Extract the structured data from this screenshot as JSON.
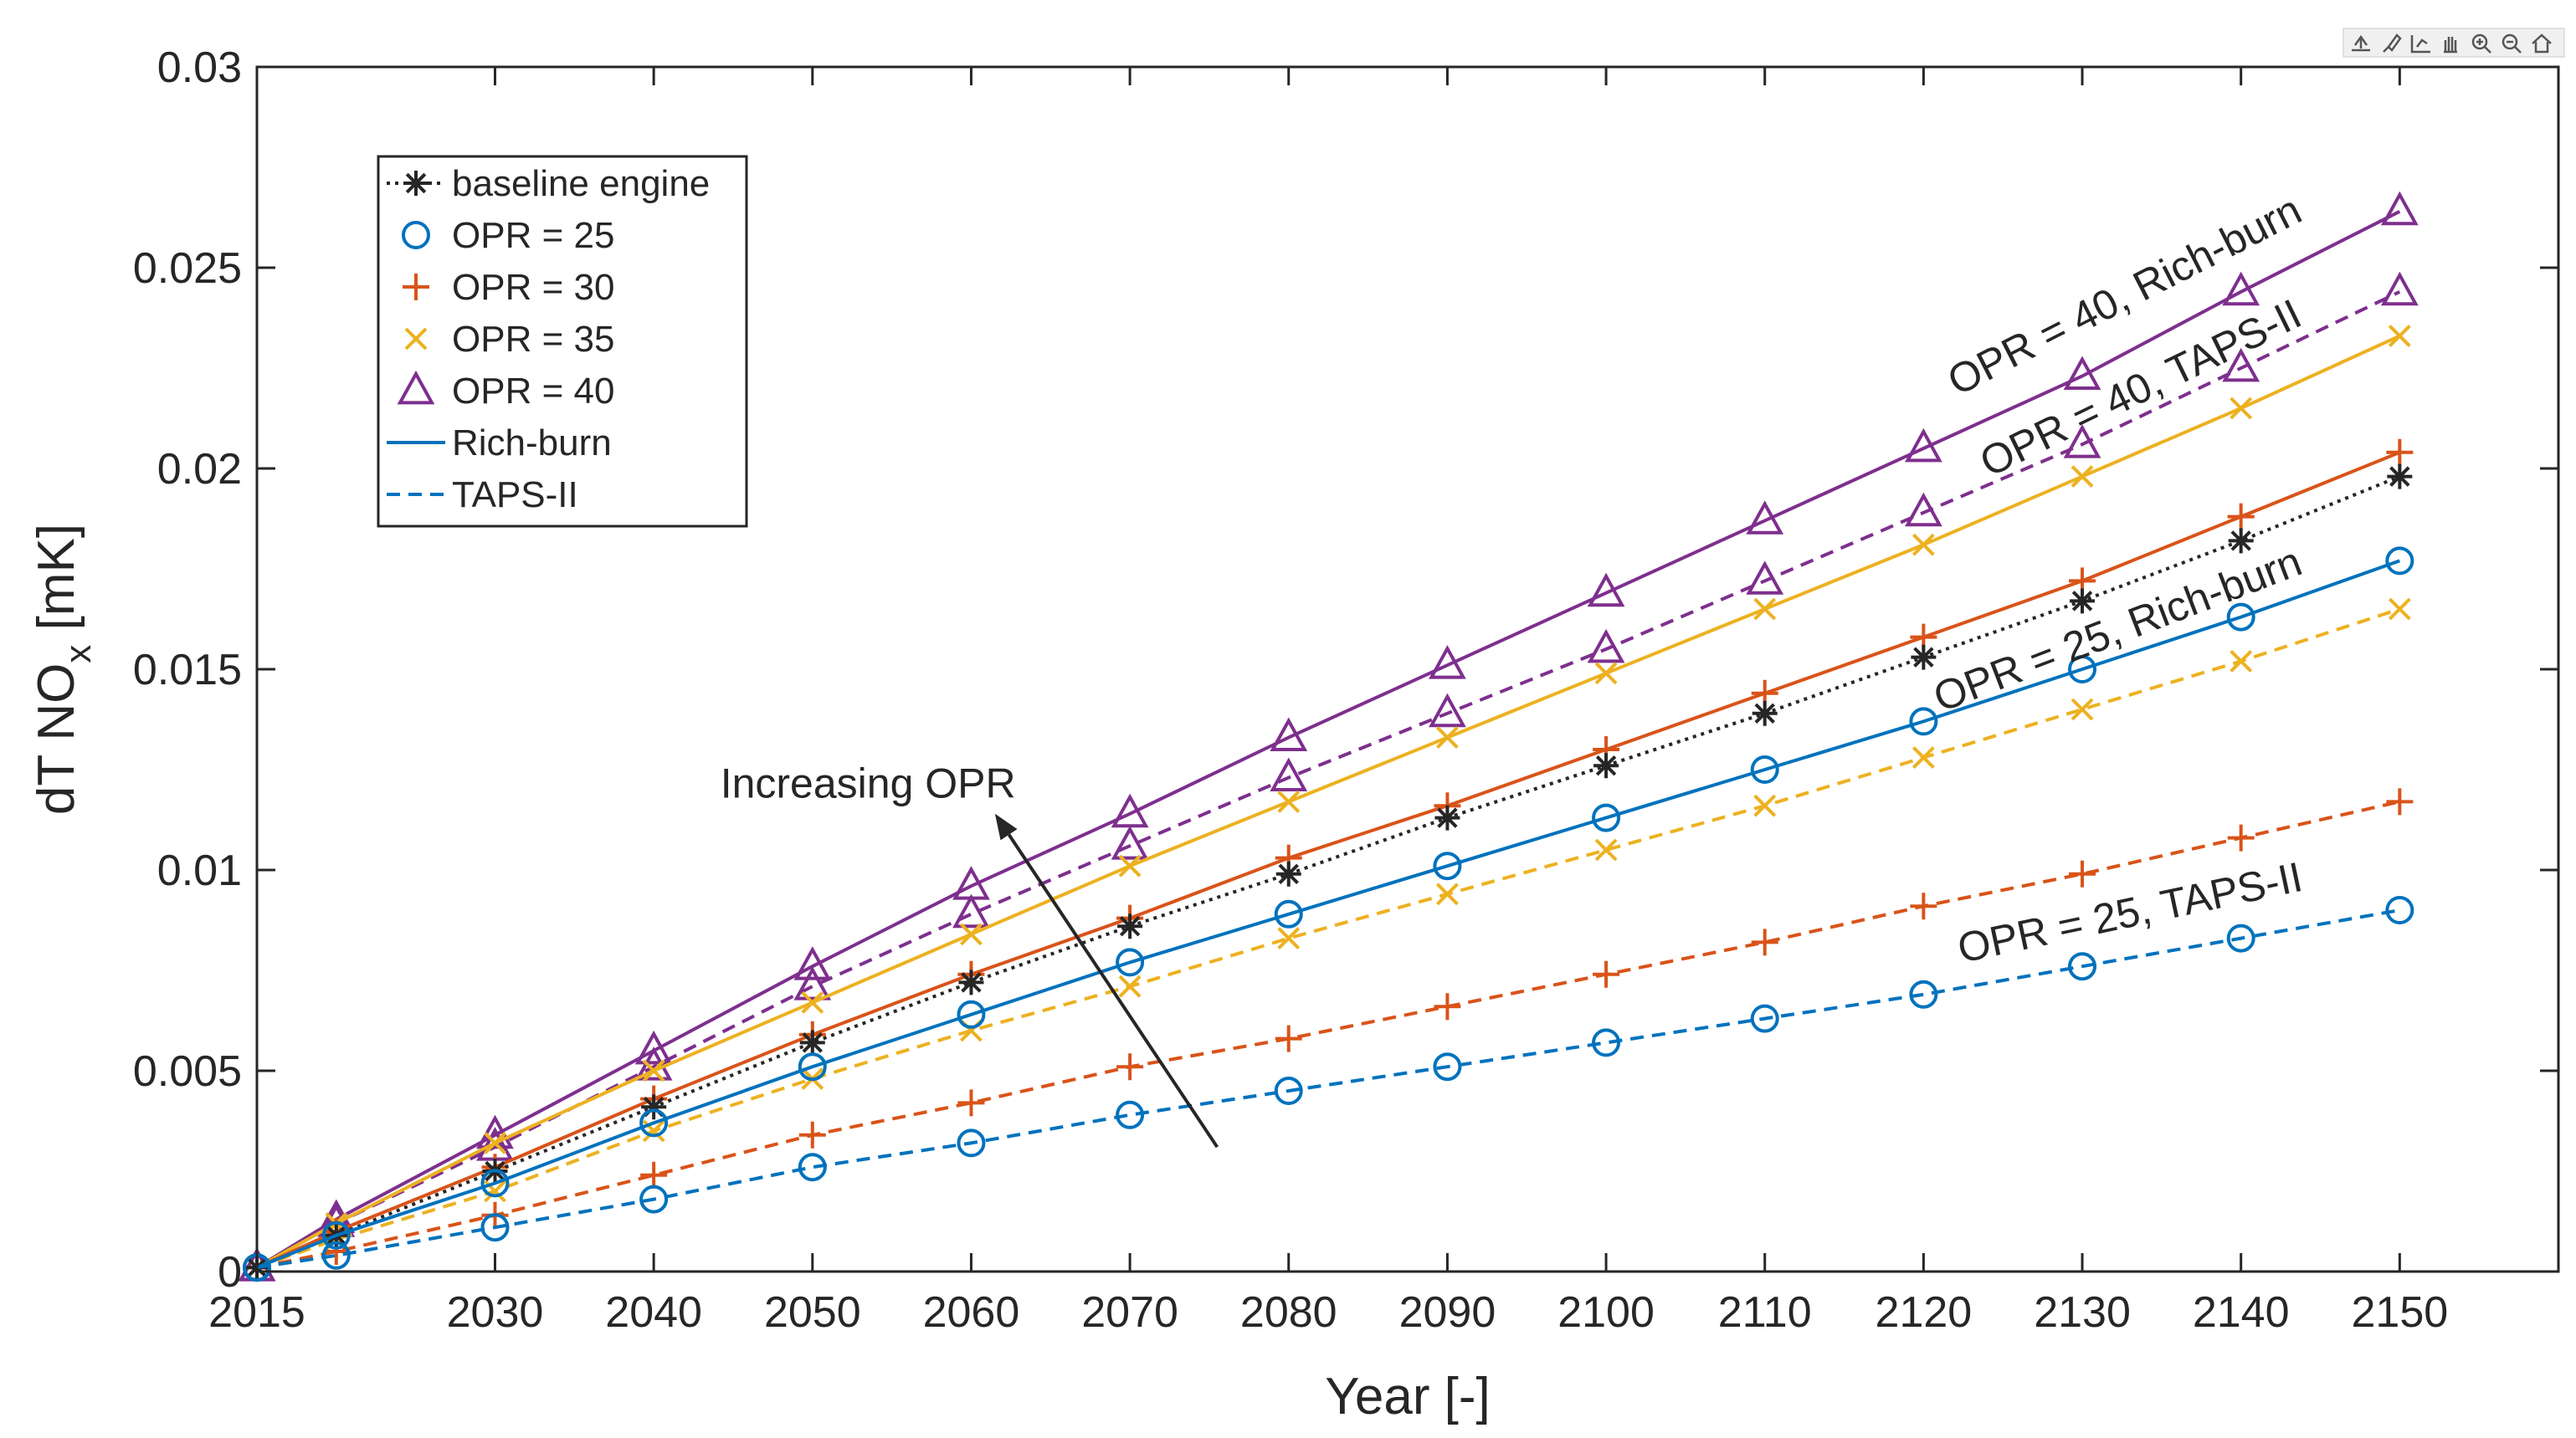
{
  "chart_data": {
    "type": "line",
    "title": "",
    "xlabel": "Year [-]",
    "ylabel": {
      "main": "dT NO",
      "sub": "x",
      "unit": " [mK]"
    },
    "xlim": [
      2015,
      2160
    ],
    "ylim": [
      0,
      0.03
    ],
    "x_ticks": [
      2015,
      2030,
      2040,
      2050,
      2060,
      2070,
      2080,
      2090,
      2100,
      2110,
      2120,
      2130,
      2140,
      2150
    ],
    "y_ticks": [
      0,
      0.005,
      0.01,
      0.015,
      0.02,
      0.025,
      0.03
    ],
    "y_tick_labels": [
      "0",
      "0.005",
      "0.01",
      "0.015",
      "0.02",
      "0.025",
      "0.03"
    ],
    "grid": false,
    "x": [
      2015,
      2020,
      2030,
      2040,
      2050,
      2060,
      2070,
      2080,
      2090,
      2100,
      2110,
      2120,
      2130,
      2140,
      2150
    ],
    "series": [
      {
        "name": "OPR = 40, Rich-burn",
        "opr": 40,
        "combustor": "Rich-burn",
        "color": "#7e2f8e",
        "marker": "triangle",
        "dash": "solid",
        "values": [
          0.0001,
          0.0013,
          0.0034,
          0.0055,
          0.0076,
          0.0096,
          0.0114,
          0.0133,
          0.0151,
          0.0169,
          0.0187,
          0.0205,
          0.0223,
          0.0244,
          0.0264
        ]
      },
      {
        "name": "OPR = 40, TAPS-II",
        "opr": 40,
        "combustor": "TAPS-II",
        "color": "#7e2f8e",
        "marker": "triangle",
        "dash": "dashed",
        "values": [
          0.0001,
          0.0012,
          0.0031,
          0.0051,
          0.0071,
          0.0089,
          0.0106,
          0.0123,
          0.0139,
          0.0155,
          0.0172,
          0.0189,
          0.0206,
          0.0225,
          0.0244
        ]
      },
      {
        "name": "OPR = 35, Rich-burn",
        "opr": 35,
        "combustor": "Rich-burn",
        "color": "#edb120",
        "marker": "x",
        "dash": "solid",
        "values": [
          0.0001,
          0.0012,
          0.0032,
          0.005,
          0.0067,
          0.0084,
          0.0101,
          0.0117,
          0.0133,
          0.0149,
          0.0165,
          0.0181,
          0.0198,
          0.0215,
          0.0233
        ]
      },
      {
        "name": "OPR = 35, TAPS-II",
        "opr": 35,
        "combustor": "TAPS-II",
        "color": "#edb120",
        "marker": "x",
        "dash": "dashed",
        "values": [
          0.0001,
          0.0008,
          0.002,
          0.0035,
          0.0048,
          0.006,
          0.0071,
          0.0083,
          0.0094,
          0.0105,
          0.0116,
          0.0128,
          0.014,
          0.0152,
          0.0165
        ]
      },
      {
        "name": "OPR = 30, Rich-burn",
        "opr": 30,
        "combustor": "Rich-burn",
        "color": "#d95319",
        "marker": "plus",
        "dash": "solid",
        "values": [
          0.0001,
          0.001,
          0.0026,
          0.0043,
          0.0059,
          0.0074,
          0.0088,
          0.0103,
          0.0116,
          0.013,
          0.0144,
          0.0158,
          0.0172,
          0.0188,
          0.0204
        ]
      },
      {
        "name": "OPR = 30, TAPS-II",
        "opr": 30,
        "combustor": "TAPS-II",
        "color": "#d95319",
        "marker": "plus",
        "dash": "dashed",
        "values": [
          0.0001,
          0.0005,
          0.0014,
          0.0024,
          0.0034,
          0.0042,
          0.0051,
          0.0058,
          0.0066,
          0.0074,
          0.0082,
          0.0091,
          0.0099,
          0.0108,
          0.0117
        ]
      },
      {
        "name": "baseline engine",
        "opr": null,
        "combustor": "baseline",
        "color": "#262626",
        "marker": "asterisk",
        "dash": "dotted",
        "values": [
          0.0001,
          0.0009,
          0.0025,
          0.0041,
          0.0057,
          0.0072,
          0.0086,
          0.0099,
          0.0113,
          0.0126,
          0.0139,
          0.0153,
          0.0167,
          0.0182,
          0.0198
        ]
      },
      {
        "name": "OPR = 25, Rich-burn",
        "opr": 25,
        "combustor": "Rich-burn",
        "color": "#0072bd",
        "marker": "circle",
        "dash": "solid",
        "values": [
          0.0001,
          0.0009,
          0.0022,
          0.0037,
          0.0051,
          0.0064,
          0.0077,
          0.0089,
          0.0101,
          0.0113,
          0.0125,
          0.0137,
          0.015,
          0.0163,
          0.0177
        ]
      },
      {
        "name": "OPR = 25, TAPS-II",
        "opr": 25,
        "combustor": "TAPS-II",
        "color": "#0072bd",
        "marker": "circle",
        "dash": "dashed",
        "values": [
          0.0001,
          0.0004,
          0.0011,
          0.0018,
          0.0026,
          0.0032,
          0.0039,
          0.0045,
          0.0051,
          0.0057,
          0.0063,
          0.0069,
          0.0076,
          0.0083,
          0.009
        ]
      }
    ],
    "legend": {
      "placement": "top-left",
      "entries": [
        {
          "label": "baseline engine",
          "marker": "asterisk",
          "color": "#262626",
          "dash": "dotted"
        },
        {
          "label": "OPR = 25",
          "marker": "circle",
          "color": "#0072bd",
          "dash": "none"
        },
        {
          "label": "OPR = 30",
          "marker": "plus",
          "color": "#d95319",
          "dash": "none"
        },
        {
          "label": "OPR = 35",
          "marker": "x",
          "color": "#edb120",
          "dash": "none"
        },
        {
          "label": "OPR = 40",
          "marker": "triangle",
          "color": "#7e2f8e",
          "dash": "none"
        },
        {
          "label": "Rich-burn",
          "marker": "none",
          "color": "#0072bd",
          "dash": "solid"
        },
        {
          "label": "TAPS-II",
          "marker": "none",
          "color": "#0072bd",
          "dash": "dashed"
        }
      ]
    },
    "annotations": [
      {
        "text": "OPR = 40, Rich-burn",
        "x": 2144,
        "y": 0.0262,
        "angle_deg": -27
      },
      {
        "text": "OPR = 40, TAPS-II",
        "x": 2144,
        "y": 0.0236,
        "angle_deg": -26
      },
      {
        "text": "OPR = 25, Rich-burn",
        "x": 2144,
        "y": 0.0174,
        "angle_deg": -21
      },
      {
        "text": "OPR = 25, TAPS-II",
        "x": 2144,
        "y": 0.0095,
        "angle_deg": -12
      },
      {
        "text": "Increasing OPR",
        "x": 2053.5,
        "y": 0.0118,
        "angle_deg": 0
      }
    ],
    "arrow": {
      "from": [
        2075.5,
        0.0031
      ],
      "to": [
        2061.5,
        0.0114
      ]
    }
  },
  "toolbar": {
    "icons": [
      "export-icon",
      "brush-icon",
      "datatip-icon",
      "pan-icon",
      "zoom-in-icon",
      "zoom-out-icon",
      "home-icon"
    ]
  }
}
